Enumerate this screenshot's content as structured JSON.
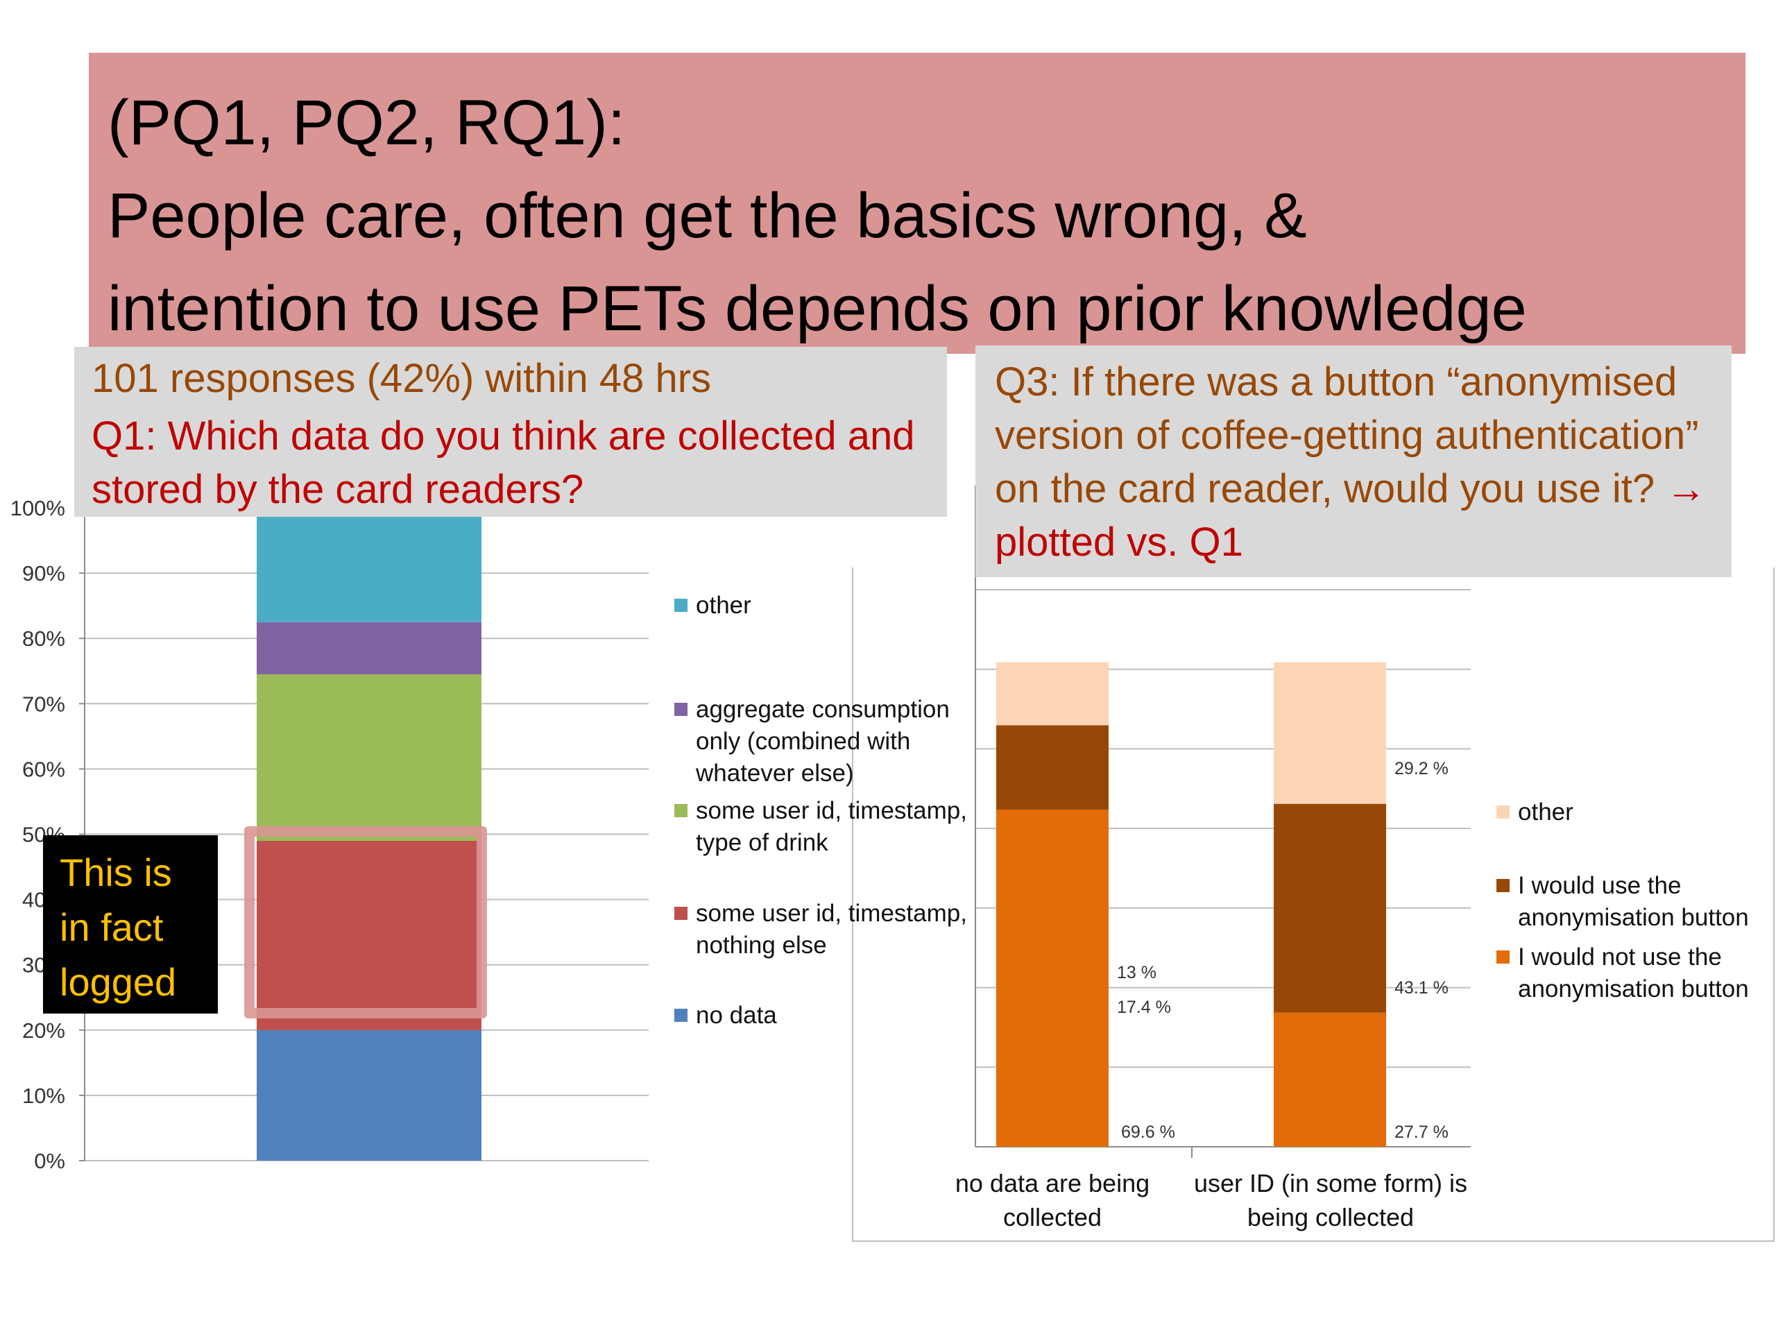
{
  "title": {
    "line1": "(PQ1, PQ2, RQ1):",
    "line2": "People care, often get the basics wrong, &",
    "line3": "intention to use PETs depends on prior knowledge"
  },
  "q1_box": {
    "line1": "101 responses (42%) within 48 hrs",
    "line2": "Q1: Which data do you think are collected and stored by the card readers?"
  },
  "q3_box": {
    "text": "Q3: If there was a button “anonymised version of coffee-getting authentication” on the card reader, would you use it? ",
    "arrow": "→",
    "suffix": " plotted vs. Q1"
  },
  "callout": {
    "text": "This is in fact logged"
  },
  "chart_data": [
    {
      "type": "bar",
      "stacked": true,
      "ylim": [
        0,
        100
      ],
      "y_ticks": [
        "0%",
        "10%",
        "20%",
        "30%",
        "40%",
        "50%",
        "60%",
        "70%",
        "80%",
        "90%",
        "100%"
      ],
      "grid": true,
      "legend_position": "right",
      "series": [
        {
          "name": "no data",
          "value": 20,
          "color": "#4f81bd"
        },
        {
          "name": "some user id, timestamp, nothing else",
          "value": 29,
          "color": "#c0504d"
        },
        {
          "name": "some user id, timestamp, type of drink",
          "value": 25.5,
          "color": "#9bbb59"
        },
        {
          "name": "aggregate consumption only (combined with whatever else)",
          "value": 8,
          "color": "#8064a2"
        },
        {
          "name": "other",
          "value": 17.5,
          "color": "#4bacc6"
        }
      ]
    },
    {
      "type": "bar",
      "stacked": true,
      "categories": [
        "no data are being collected",
        "user ID (in some form) is being collected"
      ],
      "legend_position": "right",
      "grid": true,
      "series": [
        {
          "name": "I would not use the anonymisation button",
          "values": [
            69.6,
            27.7
          ],
          "labels": [
            "69.6 %",
            "27.7 %"
          ],
          "color": "#e36c0a"
        },
        {
          "name": "I would use the anonymisation button",
          "values": [
            17.4,
            43.1
          ],
          "labels": [
            "17.4 %",
            "43.1 %"
          ],
          "color": "#974806"
        },
        {
          "name": "other",
          "values": [
            13,
            29.2
          ],
          "labels": [
            "13 %",
            "29.2 %"
          ],
          "color": "#fbd5b5"
        }
      ]
    }
  ]
}
